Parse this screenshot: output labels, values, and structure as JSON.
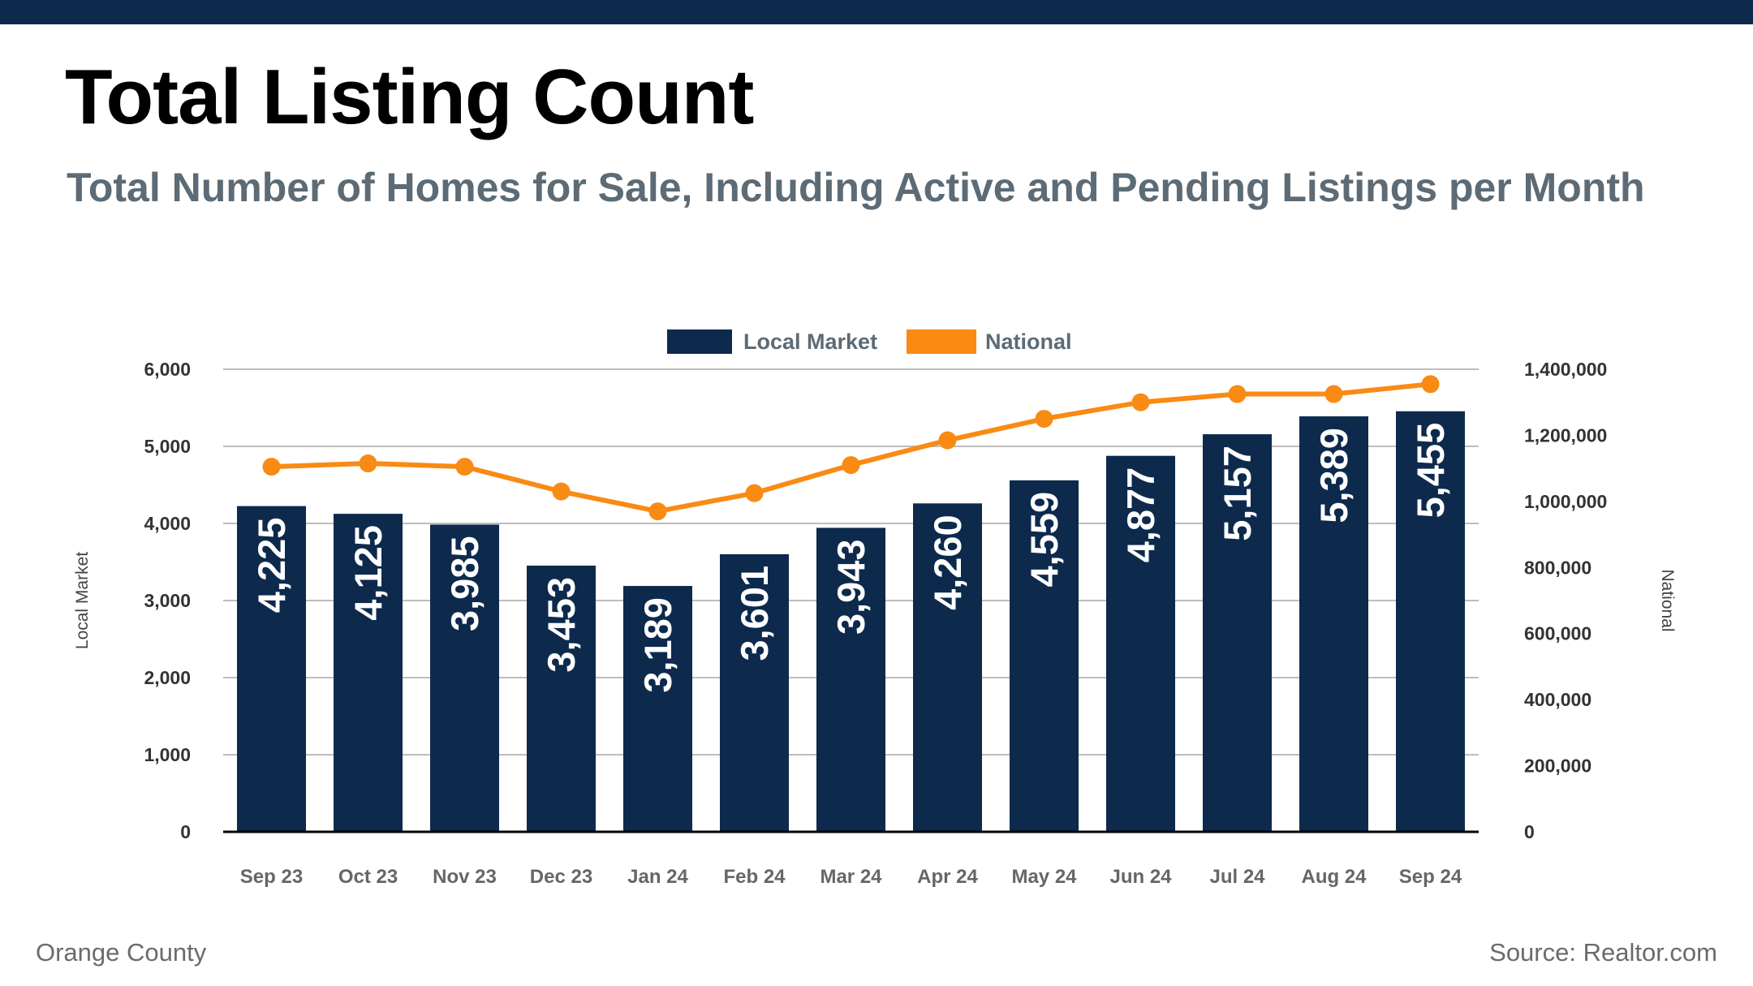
{
  "title": "Total Listing Count",
  "subtitle": "Total Number of Homes for Sale, Including Active and Pending Listings per Month",
  "footer": {
    "region": "Orange County",
    "source": "Source: Realtor.com"
  },
  "colors": {
    "topbar": "#0d2a4d",
    "bar": "#0d2a4d",
    "line": "#f98a14",
    "grid": "#bdbdbd"
  },
  "chart_data": {
    "type": "bar",
    "categories": [
      "Sep 23",
      "Oct 23",
      "Nov 23",
      "Dec 23",
      "Jan 24",
      "Feb 24",
      "Mar 24",
      "Apr 24",
      "May 24",
      "Jun 24",
      "Jul 24",
      "Aug 24",
      "Sep 24"
    ],
    "series": [
      {
        "name": "Local Market",
        "type": "bar",
        "axis": "left",
        "values": [
          4225,
          4125,
          3985,
          3453,
          3189,
          3601,
          3943,
          4260,
          4559,
          4877,
          5157,
          5389,
          5455
        ],
        "labels": [
          "4,225",
          "4,125",
          "3,985",
          "3,453",
          "3,189",
          "3,601",
          "3,943",
          "4,260",
          "4,559",
          "4,877",
          "5,157",
          "5,389",
          "5,455"
        ]
      },
      {
        "name": "National",
        "type": "line",
        "axis": "right",
        "values": [
          1105000,
          1115000,
          1105000,
          1030000,
          970000,
          1025000,
          1110000,
          1185000,
          1250000,
          1300000,
          1325000,
          1325000,
          1355000
        ]
      }
    ],
    "ylabel_left": "Local Market",
    "ylabel_right": "National",
    "ylim_left": [
      0,
      6000
    ],
    "ylim_right": [
      0,
      1400000
    ],
    "yticks_left": [
      "0",
      "1,000",
      "2,000",
      "3,000",
      "4,000",
      "5,000",
      "6,000"
    ],
    "yticks_right": [
      "0",
      "200,000",
      "400,000",
      "600,000",
      "800,000",
      "1,000,000",
      "1,200,000",
      "1,400,000"
    ],
    "grid": true,
    "legend": "top-center"
  }
}
